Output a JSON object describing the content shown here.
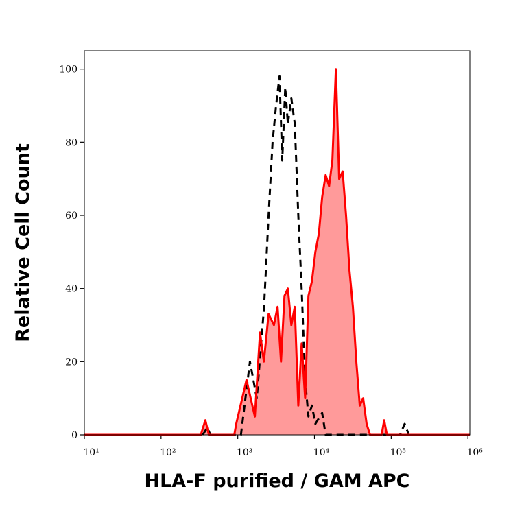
{
  "chart_data": {
    "type": "histogram-overlay",
    "xlabel": "HLA-F purified / GAM APC",
    "ylabel": "Relative Cell Count",
    "xscale": "log",
    "xlim": [
      10,
      1060000
    ],
    "ylim": [
      0,
      105
    ],
    "xticks": [
      {
        "value": 10,
        "label": "10¹"
      },
      {
        "value": 100,
        "label": "10²"
      },
      {
        "value": 1000,
        "label": "10³"
      },
      {
        "value": 10000,
        "label": "10⁴"
      },
      {
        "value": 100000,
        "label": "10⁵"
      },
      {
        "value": 1000000,
        "label": "10⁶"
      }
    ],
    "yticks": [
      0,
      20,
      40,
      60,
      80,
      100
    ],
    "series": [
      {
        "color": "#ff0000",
        "fill": "#ff9a9a",
        "style": "solid",
        "x": [
          10,
          330,
          378,
          420,
          900,
          955,
          1300,
          1670,
          1950,
          2190,
          2520,
          2960,
          3300,
          3660,
          4070,
          4500,
          5000,
          5540,
          6150,
          6800,
          7550,
          8350,
          9260,
          10270,
          11400,
          12600,
          14000,
          15500,
          17100,
          19000,
          21000,
          23300,
          25800,
          28600,
          31700,
          35100,
          38900,
          43100,
          47800,
          53000,
          75000,
          81000,
          88000,
          1060000
        ],
        "values": [
          0,
          0,
          4,
          0,
          0,
          3,
          15,
          5,
          28,
          20,
          33,
          30,
          35,
          20,
          38,
          40,
          30,
          35,
          8,
          25,
          10,
          38,
          42,
          50,
          55,
          65,
          71,
          68,
          75,
          100,
          70,
          72,
          60,
          45,
          35,
          20,
          8,
          10,
          3,
          0,
          0,
          4,
          0,
          0
        ]
      },
      {
        "color": "#000000",
        "style": "dashed",
        "x": [
          350,
          400,
          440,
          900,
          1100,
          1440,
          1770,
          2200,
          2520,
          2840,
          3160,
          3500,
          3800,
          4160,
          4500,
          5000,
          5540,
          6150,
          6800,
          7550,
          8350,
          9260,
          10270,
          12600,
          14000,
          130000,
          150000,
          170000
        ],
        "values": [
          0,
          2,
          0,
          0,
          0,
          20,
          10,
          35,
          60,
          80,
          90,
          98,
          75,
          95,
          85,
          92,
          85,
          60,
          40,
          15,
          5,
          8,
          3,
          6,
          0,
          0,
          3,
          0
        ]
      }
    ]
  }
}
